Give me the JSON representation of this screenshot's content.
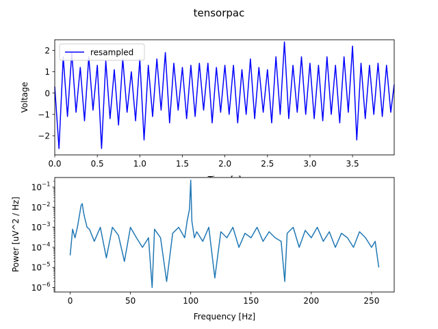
{
  "figure": {
    "suptitle": "tensorpac"
  },
  "chart_data": [
    {
      "type": "line",
      "xlabel": "Time [s]",
      "ylabel": "Voltage",
      "xlim": [
        0,
        3.99
      ],
      "ylim": [
        -2.9,
        2.5
      ],
      "xticks": [
        0.0,
        0.5,
        1.0,
        1.5,
        2.0,
        2.5,
        3.0,
        3.5
      ],
      "xtick_labels": [
        "0.0",
        "0.5",
        "1.0",
        "1.5",
        "2.0",
        "2.5",
        "3.0",
        "3.5"
      ],
      "yticks": [
        -2,
        -1,
        0,
        1,
        2
      ],
      "ytick_labels": [
        "−2",
        "−1",
        "0",
        "1",
        "2"
      ],
      "legend": {
        "placement": "upper-left",
        "entries": [
          "resampled"
        ]
      },
      "series": [
        {
          "name": "resampled",
          "color": "#0000ff",
          "x": [
            0.0,
            0.05,
            0.1,
            0.15,
            0.2,
            0.25,
            0.3,
            0.35,
            0.4,
            0.45,
            0.5,
            0.55,
            0.6,
            0.65,
            0.7,
            0.75,
            0.8,
            0.85,
            0.9,
            0.95,
            1.0,
            1.05,
            1.1,
            1.15,
            1.2,
            1.25,
            1.3,
            1.35,
            1.4,
            1.45,
            1.5,
            1.55,
            1.6,
            1.65,
            1.7,
            1.75,
            1.8,
            1.85,
            1.9,
            1.95,
            2.0,
            2.05,
            2.1,
            2.15,
            2.2,
            2.25,
            2.3,
            2.35,
            2.4,
            2.45,
            2.5,
            2.55,
            2.6,
            2.65,
            2.7,
            2.75,
            2.8,
            2.85,
            2.9,
            2.95,
            3.0,
            3.05,
            3.1,
            3.15,
            3.2,
            3.25,
            3.3,
            3.35,
            3.4,
            3.45,
            3.5,
            3.55,
            3.6,
            3.65,
            3.7,
            3.75,
            3.8,
            3.85,
            3.9,
            3.95,
            3.99
          ],
          "y": [
            0.3,
            -2.6,
            1.7,
            -1.1,
            1.9,
            -0.9,
            1.2,
            -1.3,
            1.7,
            -0.8,
            1.3,
            -2.6,
            1.5,
            -1.2,
            1.1,
            -1.5,
            1.6,
            -0.9,
            1.0,
            -1.3,
            1.6,
            -2.2,
            1.3,
            -1.1,
            1.6,
            -0.8,
            1.9,
            -1.4,
            1.4,
            -0.8,
            1.2,
            -1.2,
            1.3,
            -1.1,
            1.4,
            -0.8,
            1.4,
            -1.4,
            1.2,
            -0.9,
            1.3,
            -1.0,
            1.3,
            -1.4,
            1.1,
            -1.0,
            1.6,
            -1.2,
            1.2,
            -0.9,
            1.1,
            -1.4,
            1.7,
            -1.0,
            2.4,
            -1.2,
            1.3,
            -0.9,
            1.7,
            -1.0,
            1.4,
            -1.2,
            1.3,
            -1.3,
            1.7,
            -1.0,
            1.3,
            -1.4,
            1.7,
            -0.9,
            2.2,
            -2.2,
            1.4,
            -1.2,
            1.3,
            -1.0,
            1.4,
            -1.1,
            1.3,
            -0.9,
            0.4
          ]
        }
      ]
    },
    {
      "type": "line",
      "xlabel": "Frequency [Hz]",
      "ylabel": "Power [uV^2 / Hz]",
      "xscale": "linear",
      "yscale": "log",
      "xlim": [
        -12.8,
        268.8
      ],
      "ylim": [
        6e-07,
        0.3
      ],
      "xticks": [
        0,
        50,
        100,
        150,
        200,
        250
      ],
      "xtick_labels": [
        "0",
        "50",
        "100",
        "150",
        "200",
        "250"
      ],
      "yticks": [
        1e-06,
        1e-05,
        0.0001,
        0.001,
        0.01,
        0.1
      ],
      "ytick_labels": [
        {
          "base": "10",
          "exp": "−6"
        },
        {
          "base": "10",
          "exp": "−5"
        },
        {
          "base": "10",
          "exp": "−4"
        },
        {
          "base": "10",
          "exp": "−3"
        },
        {
          "base": "10",
          "exp": "−2"
        },
        {
          "base": "10",
          "exp": "−1"
        }
      ],
      "series": [
        {
          "name": "",
          "color": "#1f77b4",
          "x": [
            0,
            2,
            4,
            6,
            8,
            9,
            10,
            11,
            12,
            14,
            16,
            20,
            25,
            30,
            35,
            40,
            45,
            50,
            55,
            60,
            65,
            68,
            70,
            75,
            80,
            85,
            90,
            95,
            97,
            99,
            100,
            101,
            103,
            105,
            110,
            115,
            120,
            125,
            130,
            135,
            140,
            145,
            150,
            155,
            160,
            165,
            170,
            175,
            178,
            180,
            185,
            190,
            195,
            200,
            205,
            210,
            215,
            220,
            225,
            230,
            235,
            240,
            245,
            250,
            253,
            256
          ],
          "y": [
            4e-05,
            0.0008,
            0.0003,
            0.001,
            0.005,
            0.012,
            0.015,
            0.006,
            0.003,
            0.001,
            0.0008,
            0.0002,
            0.001,
            3e-05,
            0.001,
            0.0004,
            2e-05,
            0.001,
            0.0003,
            0.0001,
            0.0003,
            1e-06,
            0.0008,
            0.0003,
            2e-06,
            0.0005,
            0.001,
            0.0003,
            0.002,
            0.008,
            0.22,
            0.002,
            0.0003,
            0.0006,
            0.0002,
            0.001,
            3e-06,
            0.0006,
            0.0003,
            0.001,
            0.0001,
            0.0005,
            0.0003,
            0.001,
            0.0002,
            0.0006,
            0.0003,
            0.0002,
            2e-06,
            0.0005,
            0.001,
            0.0001,
            0.0007,
            0.0003,
            0.001,
            0.0002,
            0.0006,
            0.0001,
            0.0005,
            0.0003,
            0.0001,
            0.0006,
            0.0003,
            0.0001,
            0.0002,
            1e-05
          ]
        }
      ]
    }
  ]
}
